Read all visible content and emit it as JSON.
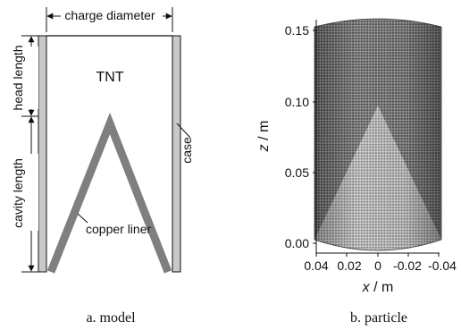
{
  "model": {
    "charge_diameter_label": "charge diameter",
    "head_length_label": "head length",
    "cavity_length_label": "cavity length",
    "tnt_label": "TNT",
    "case_label": "case",
    "liner_label": "copper liner",
    "caption": "a.  model",
    "colors": {
      "case_fill": "#c9c9c9",
      "liner": "#7f7f7f",
      "line": "#111111"
    }
  },
  "particle": {
    "caption": "b.  particle",
    "xlabel_var": "x",
    "xlabel_unit": " / m",
    "ylabel_var": "z",
    "ylabel_unit": " / m",
    "x_ticks": [
      "0.04",
      "0.02",
      "0",
      "-0.02",
      "-0.04"
    ],
    "y_ticks": [
      "0.00",
      "0.05",
      "0.10",
      "0.15"
    ],
    "xlim": [
      0.04,
      -0.04
    ],
    "ylim": [
      0.0,
      0.155
    ]
  }
}
